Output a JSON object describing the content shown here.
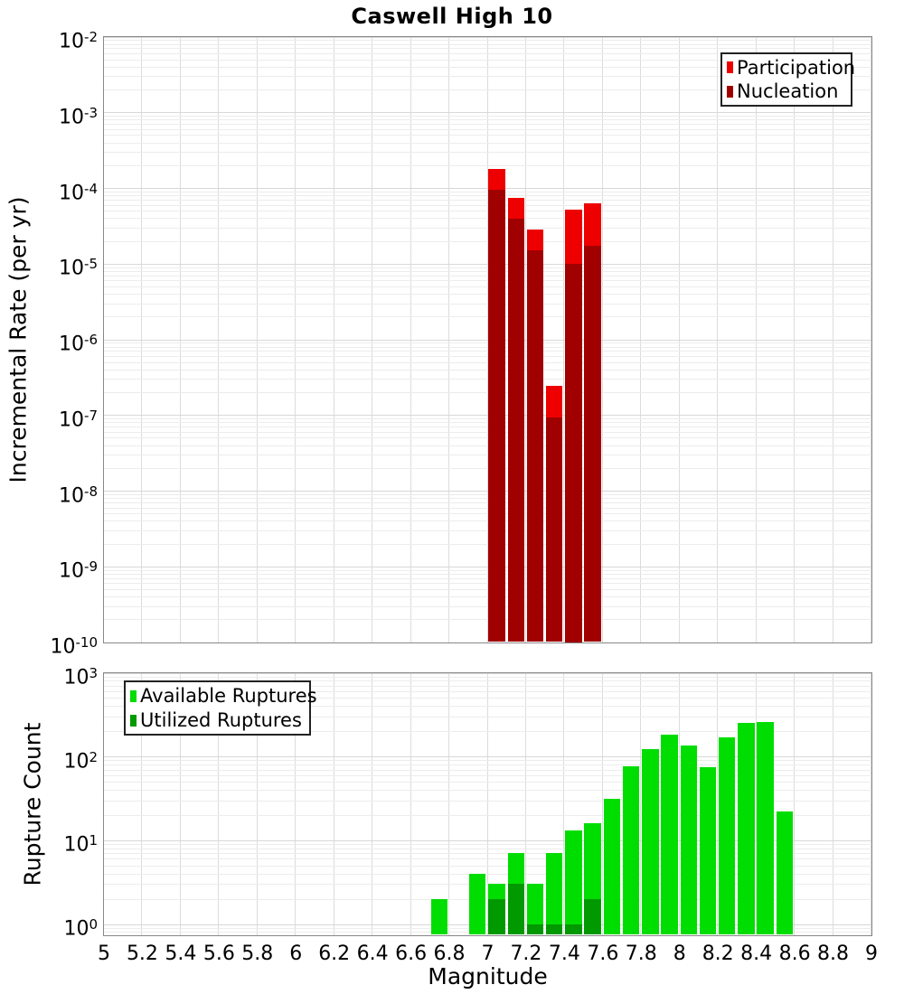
{
  "title": "Caswell High 10",
  "axes": {
    "log_base": "10",
    "xlabel": "Magnitude",
    "x_tick_labels": [
      "5",
      "5.2",
      "5.4",
      "5.6",
      "5.8",
      "6",
      "6.2",
      "6.4",
      "6.6",
      "6.8",
      "7",
      "7.2",
      "7.4",
      "7.6",
      "7.8",
      "8",
      "8.2",
      "8.4",
      "8.6",
      "8.8",
      "9"
    ],
    "top_ylabel": "Incremental Rate (per yr)",
    "top_y_tick_exponents": [
      "-2",
      "-3",
      "-4",
      "-5",
      "-6",
      "-7",
      "-8",
      "-9",
      "-10"
    ],
    "bottom_ylabel": "Rupture Count",
    "bottom_y_tick_exponents": [
      "0",
      "1",
      "2",
      "3"
    ]
  },
  "colors": {
    "participation": "#EE0000",
    "nucleation": "#A00000",
    "available": "#00DD00",
    "utilized": "#009900",
    "grid_major": "#D8D8D8",
    "grid_minor": "#ECECEC",
    "grid_vertical": "#DCDCDC",
    "plot_border": "#888888",
    "background": "#FFFFFF",
    "text": "#000000"
  },
  "chart_data": [
    {
      "type": "bar",
      "panel": "top",
      "title": "Caswell High 10",
      "xlabel": "Magnitude",
      "ylabel": "Incremental Rate (per yr)",
      "xlim": [
        5,
        9
      ],
      "ylim": [
        1e-10,
        0.01
      ],
      "yscale": "log",
      "grid": true,
      "legend_position": "top-right",
      "bin_width": 0.1,
      "bin_starts": [
        7.0,
        7.1,
        7.2,
        7.3,
        7.4,
        7.5
      ],
      "series": [
        {
          "name": "Participation",
          "color": "#EE0000",
          "values": [
            0.00018,
            7.4e-05,
            2.8e-05,
            2.4e-07,
            5.2e-05,
            6.2e-05
          ]
        },
        {
          "name": "Nucleation",
          "color": "#A00000",
          "values": [
            9.5e-05,
            3.9e-05,
            1.5e-05,
            9.2e-08,
            1e-05,
            1.7e-05
          ]
        }
      ]
    },
    {
      "type": "bar",
      "panel": "bottom",
      "xlabel": "Magnitude",
      "ylabel": "Rupture Count",
      "xlim": [
        5,
        9
      ],
      "ylim": [
        0.74,
        1000
      ],
      "yscale": "log",
      "grid": true,
      "legend_position": "top-left",
      "bin_width": 0.1,
      "bin_starts": [
        6.7,
        6.9,
        7.0,
        7.1,
        7.2,
        7.3,
        7.4,
        7.5,
        7.6,
        7.7,
        7.8,
        7.9,
        8.0,
        8.1,
        8.2,
        8.3,
        8.4,
        8.5
      ],
      "series": [
        {
          "name": "Available Ruptures",
          "color": "#00DD00",
          "values": [
            2,
            4,
            3,
            7,
            3,
            7,
            13,
            16,
            31,
            76,
            122,
            182,
            137,
            75,
            168,
            250,
            256,
            22
          ]
        },
        {
          "name": "Utilized Ruptures",
          "color": "#009900",
          "values": [
            null,
            null,
            2,
            3,
            1,
            1,
            1,
            2,
            null,
            null,
            null,
            null,
            null,
            null,
            null,
            null,
            null,
            null
          ]
        }
      ]
    }
  ]
}
